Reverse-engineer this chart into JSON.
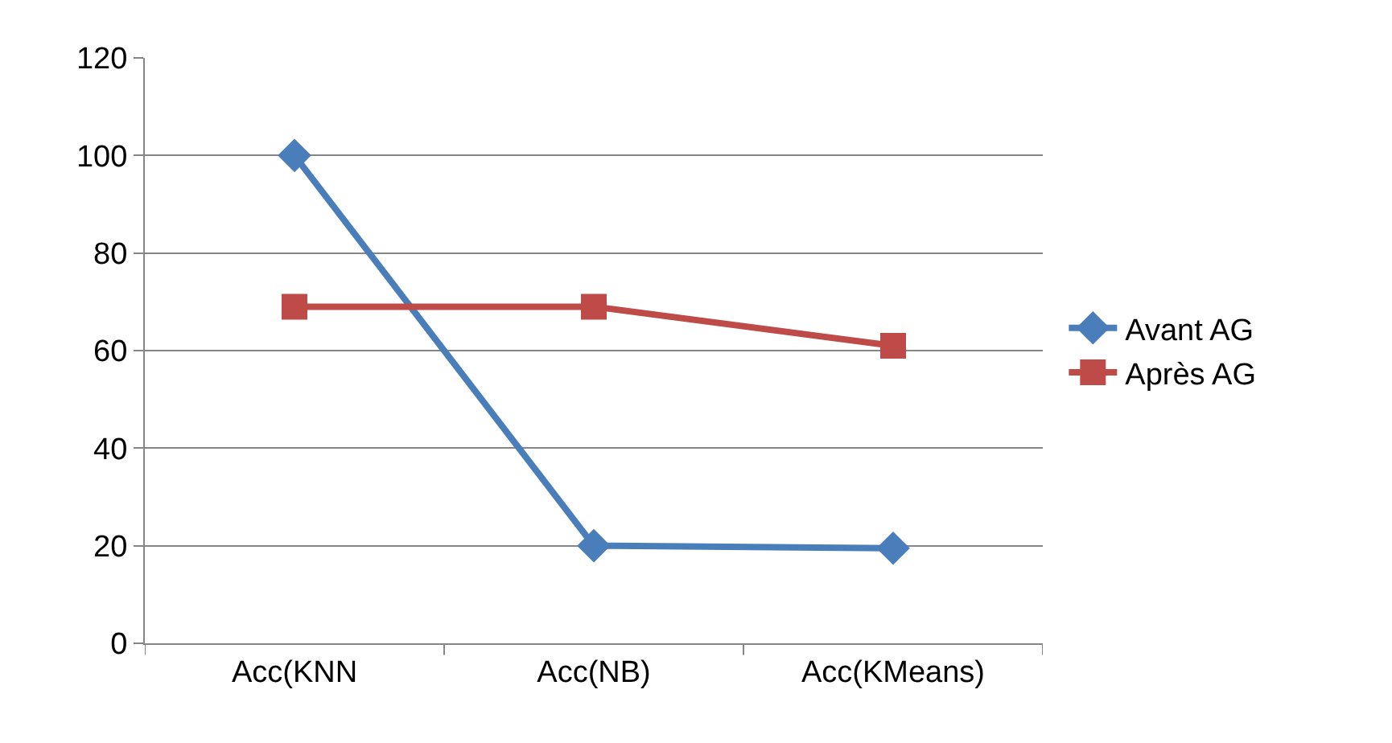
{
  "chart_data": {
    "type": "line",
    "categories": [
      "Acc(KNN",
      "Acc(NB)",
      "Acc(KMeans)"
    ],
    "series": [
      {
        "name": "Avant AG",
        "color": "#4a7ebb",
        "values": [
          100,
          20,
          19.5
        ],
        "marker": "diamond"
      },
      {
        "name": "Après AG",
        "color": "#be4b48",
        "values": [
          69,
          69,
          61
        ],
        "marker": "square"
      }
    ],
    "ylim": [
      0,
      120
    ],
    "yticks": [
      0,
      20,
      40,
      60,
      80,
      100,
      120
    ],
    "grid": "y",
    "legend": "right",
    "line_style": "solid"
  }
}
